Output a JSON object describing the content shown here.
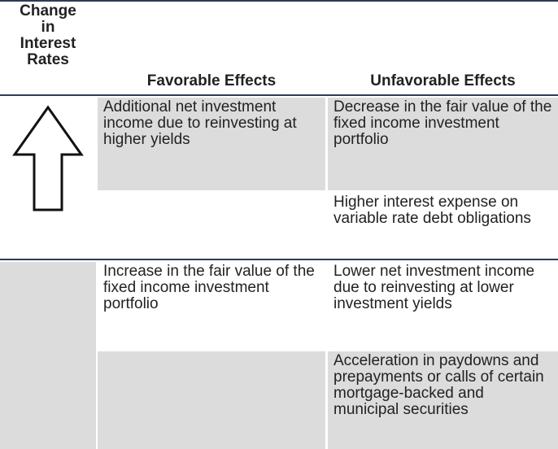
{
  "header": {
    "rate": "Change in Interest Rates",
    "favorable": "Favorable Effects",
    "unfavorable": "Unfavorable Effects"
  },
  "rows": [
    {
      "favorable": "Additional net investment income due to reinvesting at higher yields",
      "unfavorable": "Decrease in the fair value of the fixed income investment portfolio"
    },
    {
      "unfavorable": "Higher interest expense on variable rate debt obligations"
    },
    {
      "favorable": "Increase in the fair value of the fixed income investment portfolio",
      "unfavorable": "Lower net investment income due to reinvesting at lower investment yields"
    },
    {
      "unfavorable": "Acceleration in paydowns and prepayments or calls of certain mortgage-backed and municipal securities"
    }
  ]
}
